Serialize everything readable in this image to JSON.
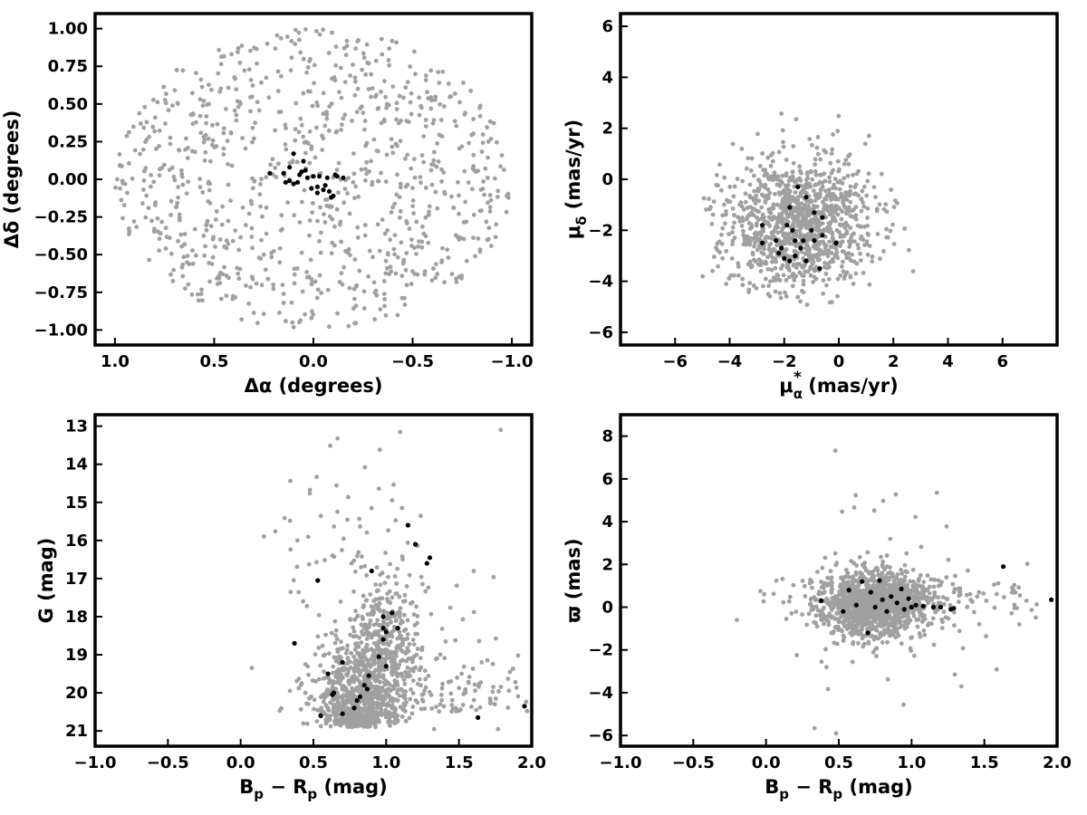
{
  "colors": {
    "background_points": "#a0a0a0",
    "member_points": "#000000",
    "axes": "#000000"
  },
  "chart_data": [
    {
      "id": "sky",
      "type": "scatter",
      "title": "",
      "xlabel": "Δα (degrees)",
      "ylabel": "Δδ (degrees)",
      "xlim": [
        1.1,
        -1.1
      ],
      "ylim": [
        -1.1,
        1.1
      ],
      "x_reversed": true,
      "xticks": [
        1.0,
        0.5,
        0.0,
        -0.5,
        -1.0
      ],
      "xtick_labels": [
        "1.0",
        "0.5",
        "0.0",
        "−0.5",
        "−1.0"
      ],
      "yticks": [
        -1.0,
        -0.75,
        -0.5,
        -0.25,
        0.0,
        0.25,
        0.5,
        0.75,
        1.0
      ],
      "ytick_labels": [
        "−1.00",
        "−0.75",
        "−0.50",
        "−0.25",
        "0.00",
        "0.25",
        "0.50",
        "0.75",
        "1.00"
      ],
      "grid": false,
      "series": [
        {
          "role": "field",
          "color": "#a0a0a0",
          "count": 900,
          "distribution": {
            "kind": "disk",
            "cx": 0.0,
            "cy": 0.0,
            "rx": 1.0,
            "ry": 1.0,
            "seed": 11
          }
        },
        {
          "role": "members",
          "color": "#000000",
          "points": [
            [
              0.1,
              0.17
            ],
            [
              0.05,
              0.12
            ],
            [
              0.12,
              0.08
            ],
            [
              0.07,
              0.03
            ],
            [
              0.15,
              0.04
            ],
            [
              0.22,
              0.04
            ],
            [
              0.12,
              -0.01
            ],
            [
              0.08,
              -0.02
            ],
            [
              0.1,
              -0.03
            ],
            [
              0.0,
              0.02
            ],
            [
              0.03,
              0.01
            ],
            [
              -0.03,
              0.02
            ],
            [
              -0.07,
              0.01
            ],
            [
              -0.12,
              0.02
            ],
            [
              -0.15,
              0.01
            ],
            [
              -0.02,
              -0.05
            ],
            [
              -0.05,
              -0.07
            ],
            [
              -0.08,
              -0.08
            ],
            [
              -0.1,
              -0.11
            ],
            [
              -0.06,
              -0.04
            ],
            [
              0.04,
              0.06
            ],
            [
              -0.11,
              0.03
            ],
            [
              0.01,
              -0.06
            ],
            [
              -0.02,
              -0.09
            ],
            [
              0.14,
              -0.02
            ],
            [
              -0.09,
              -0.12
            ],
            [
              0.06,
              0.05
            ]
          ]
        }
      ]
    },
    {
      "id": "pm",
      "type": "scatter",
      "title": "",
      "xlabel": "μ*α (mas/yr)",
      "ylabel": "μδ (mas/yr)",
      "xlim": [
        -8.0,
        8.0
      ],
      "ylim": [
        -6.5,
        6.5
      ],
      "xticks": [
        -6,
        -4,
        -2,
        0,
        2,
        4,
        6
      ],
      "xtick_labels": [
        "−6",
        "−4",
        "−2",
        "0",
        "2",
        "4",
        "6"
      ],
      "yticks": [
        -6,
        -4,
        -2,
        0,
        2,
        4,
        6
      ],
      "ytick_labels": [
        "−6",
        "−4",
        "−2",
        "0",
        "2",
        "4",
        "6"
      ],
      "grid": false,
      "series": [
        {
          "role": "field",
          "color": "#a0a0a0",
          "count": 1100,
          "distribution": {
            "kind": "gauss",
            "cx": -1.5,
            "cy": -1.8,
            "sx": 1.4,
            "sy": 1.35,
            "xmin": -5.0,
            "xmax": 5.0,
            "ymin": -5.0,
            "ymax": 5.0,
            "seed": 23
          }
        },
        {
          "role": "members",
          "color": "#000000",
          "points": [
            [
              -1.5,
              -0.3
            ],
            [
              -1.2,
              -0.7
            ],
            [
              -1.8,
              -1.1
            ],
            [
              -0.9,
              -1.3
            ],
            [
              -0.6,
              -1.5
            ],
            [
              -2.8,
              -1.8
            ],
            [
              -1.9,
              -1.8
            ],
            [
              -1.7,
              -2.0
            ],
            [
              -1.0,
              -2.0
            ],
            [
              -2.3,
              -2.4
            ],
            [
              -1.6,
              -2.4
            ],
            [
              -1.3,
              -2.4
            ],
            [
              -0.9,
              -2.4
            ],
            [
              -0.6,
              -2.2
            ],
            [
              -0.1,
              -2.5
            ],
            [
              -2.8,
              -2.5
            ],
            [
              -2.1,
              -2.7
            ],
            [
              -1.4,
              -2.7
            ],
            [
              -2.2,
              -2.9
            ],
            [
              -1.6,
              -3.0
            ],
            [
              -2.0,
              -3.1
            ],
            [
              -1.2,
              -3.2
            ],
            [
              -1.8,
              -3.2
            ],
            [
              -0.7,
              -3.5
            ]
          ]
        }
      ]
    },
    {
      "id": "cmd",
      "type": "scatter",
      "title": "",
      "xlabel": "Bp − Rp (mag)",
      "ylabel": "G (mag)",
      "xlim": [
        -1.0,
        2.0
      ],
      "ylim": [
        21.4,
        12.7
      ],
      "y_reversed": true,
      "xticks": [
        -1.0,
        -0.5,
        0.0,
        0.5,
        1.0,
        1.5,
        2.0
      ],
      "xtick_labels": [
        "−1.0",
        "−0.5",
        "0.0",
        "0.5",
        "1.0",
        "1.5",
        "2.0"
      ],
      "yticks": [
        13,
        14,
        15,
        16,
        17,
        18,
        19,
        20,
        21
      ],
      "ytick_labels": [
        "13",
        "14",
        "15",
        "16",
        "17",
        "18",
        "19",
        "20",
        "21"
      ],
      "grid": false,
      "series": [
        {
          "role": "field",
          "color": "#a0a0a0",
          "count": 1300,
          "distribution": {
            "kind": "cmd",
            "seed": 37
          }
        },
        {
          "role": "members",
          "color": "#000000",
          "points": [
            [
              0.55,
              20.6
            ],
            [
              0.7,
              20.55
            ],
            [
              0.78,
              20.4
            ],
            [
              0.8,
              20.2
            ],
            [
              0.82,
              20.1
            ],
            [
              0.63,
              20.05
            ],
            [
              0.64,
              20.0
            ],
            [
              0.85,
              19.8
            ],
            [
              0.87,
              19.9
            ],
            [
              0.88,
              19.55
            ],
            [
              0.6,
              19.5
            ],
            [
              0.7,
              19.2
            ],
            [
              1.0,
              19.3
            ],
            [
              0.95,
              19.05
            ],
            [
              0.98,
              18.6
            ],
            [
              1.0,
              18.4
            ],
            [
              0.98,
              18.3
            ],
            [
              1.08,
              18.3
            ],
            [
              0.98,
              18.0
            ],
            [
              1.04,
              17.9
            ],
            [
              0.37,
              18.7
            ],
            [
              0.53,
              17.05
            ],
            [
              0.9,
              16.8
            ],
            [
              1.28,
              16.6
            ],
            [
              1.3,
              16.45
            ],
            [
              1.2,
              16.1
            ],
            [
              1.15,
              15.6
            ],
            [
              1.95,
              20.35
            ],
            [
              1.63,
              20.65
            ]
          ]
        }
      ]
    },
    {
      "id": "parallax",
      "type": "scatter",
      "title": "",
      "xlabel": "Bp − Rp (mag)",
      "ylabel": "ϖ (mas)",
      "xlim": [
        -1.0,
        2.0
      ],
      "ylim": [
        -6.5,
        9.0
      ],
      "xticks": [
        -1.0,
        -0.5,
        0.0,
        0.5,
        1.0,
        1.5,
        2.0
      ],
      "xtick_labels": [
        "−1.0",
        "−0.5",
        "0.0",
        "0.5",
        "1.0",
        "1.5",
        "2.0"
      ],
      "yticks": [
        -6,
        -4,
        -2,
        0,
        2,
        4,
        6,
        8
      ],
      "ytick_labels": [
        "−6",
        "−4",
        "−2",
        "0",
        "2",
        "4",
        "6",
        "8"
      ],
      "grid": false,
      "series": [
        {
          "role": "field",
          "color": "#a0a0a0",
          "count": 1500,
          "distribution": {
            "kind": "plx",
            "seed": 51
          }
        },
        {
          "role": "members",
          "color": "#000000",
          "points": [
            [
              0.38,
              0.3
            ],
            [
              0.53,
              -0.2
            ],
            [
              0.57,
              0.8
            ],
            [
              0.62,
              0.1
            ],
            [
              0.66,
              1.2
            ],
            [
              0.7,
              -1.2
            ],
            [
              0.72,
              0.7
            ],
            [
              0.75,
              0.0
            ],
            [
              0.78,
              1.25
            ],
            [
              0.8,
              0.35
            ],
            [
              0.83,
              -0.2
            ],
            [
              0.86,
              0.5
            ],
            [
              0.9,
              0.2
            ],
            [
              0.93,
              0.85
            ],
            [
              0.95,
              -0.1
            ],
            [
              0.98,
              0.4
            ],
            [
              1.0,
              0.0
            ],
            [
              1.03,
              0.1
            ],
            [
              1.08,
              0.05
            ],
            [
              1.15,
              0.0
            ],
            [
              1.2,
              0.0
            ],
            [
              1.27,
              -0.1
            ],
            [
              1.29,
              -0.05
            ],
            [
              1.63,
              1.9
            ],
            [
              1.96,
              0.35
            ]
          ]
        }
      ]
    }
  ]
}
